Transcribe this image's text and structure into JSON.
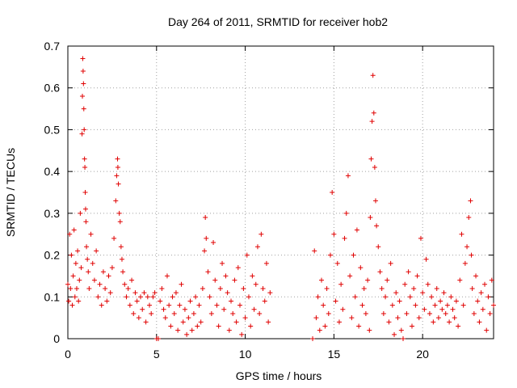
{
  "chart_data": {
    "type": "scatter",
    "title": "Day 264 of 2011, SRMTID for receiver hob2",
    "xlabel": "GPS time / hours",
    "ylabel": "SRMTID / TECUs",
    "xlim": [
      0,
      24
    ],
    "ylim": [
      0,
      0.7
    ],
    "xticks": [
      0,
      5,
      10,
      15,
      20
    ],
    "xtick_labels": [
      "0",
      "5",
      "10",
      "15",
      "20"
    ],
    "yticks": [
      0,
      0.1,
      0.2,
      0.3,
      0.4,
      0.5,
      0.6,
      0.7
    ],
    "ytick_labels": [
      "0",
      "0.1",
      "0.2",
      "0.3",
      "0.4",
      "0.5",
      "0.6",
      "0.7"
    ],
    "grid": true,
    "marker": "+",
    "color": "#e00000",
    "series": [
      {
        "name": "SRMTID",
        "x": [
          0.0,
          0.05,
          0.1,
          0.15,
          0.2,
          0.25,
          0.3,
          0.35,
          0.4,
          0.45,
          0.5,
          0.55,
          0.6,
          0.65,
          0.7,
          0.75,
          0.8,
          0.82,
          0.84,
          0.86,
          0.88,
          0.9,
          0.92,
          0.94,
          0.96,
          0.98,
          1.0,
          1.02,
          1.05,
          1.1,
          1.15,
          1.2,
          1.3,
          1.4,
          1.5,
          1.6,
          1.7,
          1.8,
          1.9,
          2.0,
          2.1,
          2.2,
          2.3,
          2.4,
          2.5,
          2.6,
          2.7,
          2.75,
          2.8,
          2.82,
          2.85,
          2.9,
          2.95,
          3.0,
          3.05,
          3.1,
          3.2,
          3.3,
          3.4,
          3.5,
          3.6,
          3.7,
          3.8,
          3.9,
          4.0,
          4.1,
          4.2,
          4.3,
          4.4,
          4.5,
          4.6,
          4.7,
          4.8,
          4.9,
          5.0,
          5.1,
          5.2,
          5.3,
          5.4,
          5.5,
          5.6,
          5.7,
          5.8,
          5.9,
          6.0,
          6.1,
          6.2,
          6.3,
          6.4,
          6.5,
          6.6,
          6.7,
          6.8,
          6.9,
          7.0,
          7.1,
          7.2,
          7.3,
          7.4,
          7.5,
          7.6,
          7.7,
          7.75,
          7.8,
          7.9,
          8.0,
          8.1,
          8.2,
          8.3,
          8.4,
          8.5,
          8.6,
          8.7,
          8.8,
          8.9,
          9.0,
          9.1,
          9.2,
          9.3,
          9.4,
          9.5,
          9.6,
          9.7,
          9.8,
          9.9,
          10.0,
          10.1,
          10.2,
          10.3,
          10.4,
          10.5,
          10.6,
          10.7,
          10.8,
          10.9,
          11.0,
          11.1,
          11.2,
          11.3,
          11.4,
          13.8,
          13.9,
          14.0,
          14.1,
          14.2,
          14.3,
          14.4,
          14.5,
          14.6,
          14.7,
          14.8,
          14.9,
          15.0,
          15.1,
          15.2,
          15.3,
          15.4,
          15.5,
          15.6,
          15.7,
          15.8,
          15.9,
          16.0,
          16.1,
          16.2,
          16.3,
          16.4,
          16.5,
          16.6,
          16.7,
          16.8,
          16.9,
          17.0,
          17.05,
          17.1,
          17.15,
          17.2,
          17.25,
          17.3,
          17.35,
          17.4,
          17.5,
          17.6,
          17.7,
          17.8,
          17.9,
          18.0,
          18.1,
          18.2,
          18.3,
          18.4,
          18.5,
          18.6,
          18.7,
          18.8,
          18.9,
          19.0,
          19.1,
          19.2,
          19.3,
          19.4,
          19.5,
          19.6,
          19.7,
          19.8,
          19.9,
          20.0,
          20.1,
          20.2,
          20.3,
          20.4,
          20.5,
          20.6,
          20.7,
          20.8,
          20.9,
          21.0,
          21.1,
          21.2,
          21.3,
          21.4,
          21.5,
          21.6,
          21.7,
          21.8,
          21.9,
          22.0,
          22.1,
          22.2,
          22.3,
          22.4,
          22.5,
          22.6,
          22.7,
          22.75,
          22.8,
          22.9,
          23.0,
          23.1,
          23.2,
          23.3,
          23.4,
          23.5,
          23.6,
          23.7,
          23.8,
          23.9,
          24.0
        ],
        "y": [
          0.13,
          0.09,
          0.25,
          0.12,
          0.2,
          0.08,
          0.15,
          0.26,
          0.1,
          0.18,
          0.12,
          0.21,
          0.09,
          0.14,
          0.3,
          0.17,
          0.49,
          0.58,
          0.67,
          0.64,
          0.61,
          0.55,
          0.5,
          0.43,
          0.41,
          0.35,
          0.31,
          0.28,
          0.22,
          0.19,
          0.16,
          0.12,
          0.25,
          0.18,
          0.14,
          0.21,
          0.1,
          0.13,
          0.08,
          0.16,
          0.12,
          0.09,
          0.15,
          0.11,
          0.17,
          0.24,
          0.33,
          0.39,
          0.43,
          0.41,
          0.37,
          0.3,
          0.28,
          0.22,
          0.19,
          0.16,
          0.13,
          0.1,
          0.12,
          0.08,
          0.14,
          0.06,
          0.11,
          0.09,
          0.05,
          0.1,
          0.07,
          0.11,
          0.04,
          0.1,
          0.08,
          0.06,
          0.1,
          0.11,
          0.0,
          0.0,
          0.09,
          0.12,
          0.07,
          0.05,
          0.15,
          0.08,
          0.03,
          0.1,
          0.06,
          0.11,
          0.02,
          0.08,
          0.13,
          0.04,
          0.07,
          0.01,
          0.05,
          0.09,
          0.02,
          0.06,
          0.1,
          0.03,
          0.08,
          0.04,
          0.12,
          0.21,
          0.29,
          0.24,
          0.16,
          0.1,
          0.06,
          0.23,
          0.14,
          0.08,
          0.03,
          0.12,
          0.18,
          0.07,
          0.15,
          0.11,
          0.02,
          0.09,
          0.06,
          0.14,
          0.04,
          0.17,
          0.08,
          0.01,
          0.12,
          0.05,
          0.2,
          0.1,
          0.03,
          0.15,
          0.07,
          0.13,
          0.22,
          0.06,
          0.25,
          0.12,
          0.09,
          0.18,
          0.04,
          0.11,
          0.0,
          0.21,
          0.05,
          0.1,
          0.02,
          0.14,
          0.08,
          0.03,
          0.12,
          0.06,
          0.2,
          0.35,
          0.25,
          0.09,
          0.18,
          0.04,
          0.13,
          0.07,
          0.24,
          0.3,
          0.39,
          0.15,
          0.05,
          0.2,
          0.1,
          0.26,
          0.03,
          0.17,
          0.08,
          0.12,
          0.06,
          0.14,
          0.02,
          0.29,
          0.43,
          0.52,
          0.63,
          0.54,
          0.41,
          0.33,
          0.27,
          0.22,
          0.16,
          0.12,
          0.06,
          0.1,
          0.14,
          0.04,
          0.18,
          0.08,
          0.01,
          0.11,
          0.05,
          0.09,
          0.02,
          0.0,
          0.13,
          0.06,
          0.16,
          0.1,
          0.03,
          0.12,
          0.08,
          0.15,
          0.05,
          0.24,
          0.11,
          0.07,
          0.19,
          0.13,
          0.06,
          0.1,
          0.04,
          0.08,
          0.12,
          0.05,
          0.09,
          0.07,
          0.11,
          0.06,
          0.08,
          0.04,
          0.1,
          0.07,
          0.05,
          0.09,
          0.03,
          0.14,
          0.25,
          0.08,
          0.18,
          0.22,
          0.29,
          0.33,
          0.2,
          0.12,
          0.06,
          0.15,
          0.09,
          0.04,
          0.11,
          0.07,
          0.13,
          0.02,
          0.1,
          0.06,
          0.14,
          0.08
        ]
      }
    ]
  }
}
